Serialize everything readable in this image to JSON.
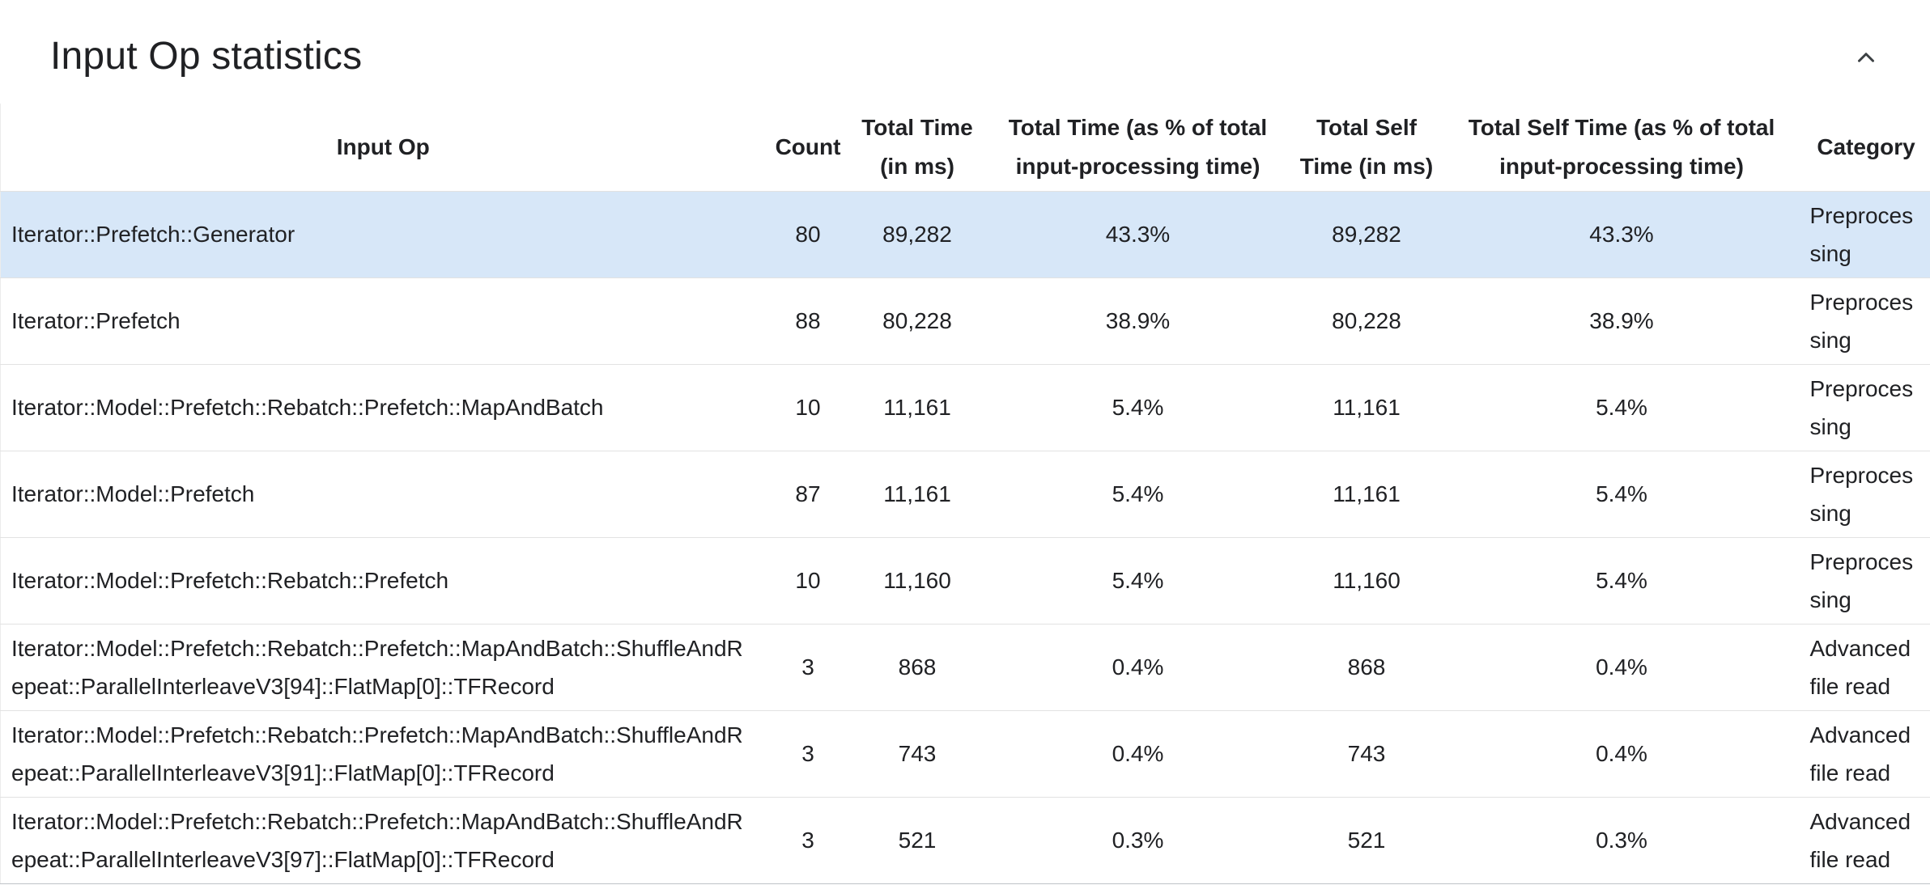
{
  "section": {
    "title": "Input Op statistics",
    "collapse_icon": "chevron-up-icon"
  },
  "colors": {
    "highlight_row": "#d7e7f8",
    "row_border": "#e2e2e2",
    "text": "#202124"
  },
  "table": {
    "columns": [
      {
        "key": "input_op",
        "label": "Input Op",
        "align": "left"
      },
      {
        "key": "count",
        "label": "Count",
        "align": "center"
      },
      {
        "key": "total_time",
        "label": "Total Time (in ms)",
        "align": "center"
      },
      {
        "key": "total_time_pct",
        "label": "Total Time (as % of total input-processing time)",
        "align": "center"
      },
      {
        "key": "total_self_time",
        "label": "Total Self Time (in ms)",
        "align": "center"
      },
      {
        "key": "total_self_time_pct",
        "label": "Total Self Time (as % of total input-processing time)",
        "align": "center"
      },
      {
        "key": "category",
        "label": "Category",
        "align": "left"
      }
    ],
    "rows": [
      {
        "highlighted": true,
        "cells": [
          "Iterator::Prefetch::Generator",
          "80",
          "89,282",
          "43.3%",
          "89,282",
          "43.3%",
          "Preprocessing"
        ]
      },
      {
        "highlighted": false,
        "cells": [
          "Iterator::Prefetch",
          "88",
          "80,228",
          "38.9%",
          "80,228",
          "38.9%",
          "Preprocessing"
        ]
      },
      {
        "highlighted": false,
        "cells": [
          "Iterator::Model::Prefetch::Rebatch::Prefetch::MapAndBatch",
          "10",
          "11,161",
          "5.4%",
          "11,161",
          "5.4%",
          "Preprocessing"
        ]
      },
      {
        "highlighted": false,
        "cells": [
          "Iterator::Model::Prefetch",
          "87",
          "11,161",
          "5.4%",
          "11,161",
          "5.4%",
          "Preprocessing"
        ]
      },
      {
        "highlighted": false,
        "cells": [
          "Iterator::Model::Prefetch::Rebatch::Prefetch",
          "10",
          "11,160",
          "5.4%",
          "11,160",
          "5.4%",
          "Preprocessing"
        ]
      },
      {
        "highlighted": false,
        "cells": [
          "Iterator::Model::Prefetch::Rebatch::Prefetch::MapAndBatch::ShuffleAndRepeat::ParallelInterleaveV3[94]::FlatMap[0]::TFRecord",
          "3",
          "868",
          "0.4%",
          "868",
          "0.4%",
          "Advanced file read"
        ]
      },
      {
        "highlighted": false,
        "cells": [
          "Iterator::Model::Prefetch::Rebatch::Prefetch::MapAndBatch::ShuffleAndRepeat::ParallelInterleaveV3[91]::FlatMap[0]::TFRecord",
          "3",
          "743",
          "0.4%",
          "743",
          "0.4%",
          "Advanced file read"
        ]
      },
      {
        "highlighted": false,
        "cells": [
          "Iterator::Model::Prefetch::Rebatch::Prefetch::MapAndBatch::ShuffleAndRepeat::ParallelInterleaveV3[97]::FlatMap[0]::TFRecord",
          "3",
          "521",
          "0.3%",
          "521",
          "0.3%",
          "Advanced file read"
        ]
      }
    ]
  }
}
